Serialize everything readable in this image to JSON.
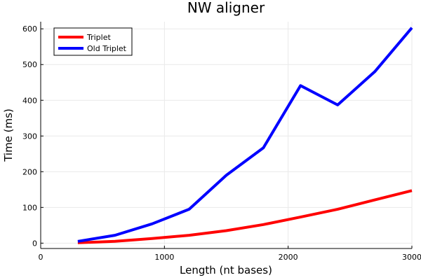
{
  "chart_data": {
    "type": "line",
    "title": "NW aligner",
    "xlabel": "Length (nt bases)",
    "ylabel": "Time (ms)",
    "xlim": [
      0,
      3000
    ],
    "ylim": [
      -15,
      620
    ],
    "xticks": [
      0,
      1000,
      2000,
      3000
    ],
    "yticks": [
      0,
      100,
      200,
      300,
      400,
      500,
      600
    ],
    "x": [
      300,
      600,
      900,
      1200,
      1500,
      1800,
      2100,
      2400,
      2700,
      3000
    ],
    "series": [
      {
        "name": "Triplet",
        "color": "#ff0000",
        "values": [
          1,
          5,
          13,
          22,
          35,
          52,
          73,
          95,
          121,
          147
        ]
      },
      {
        "name": "Old Triplet",
        "color": "#0000ff",
        "values": [
          5,
          22,
          54,
          95,
          190,
          267,
          441,
          387,
          480,
          603
        ]
      }
    ],
    "grid": true,
    "legend_position": "top-left"
  }
}
